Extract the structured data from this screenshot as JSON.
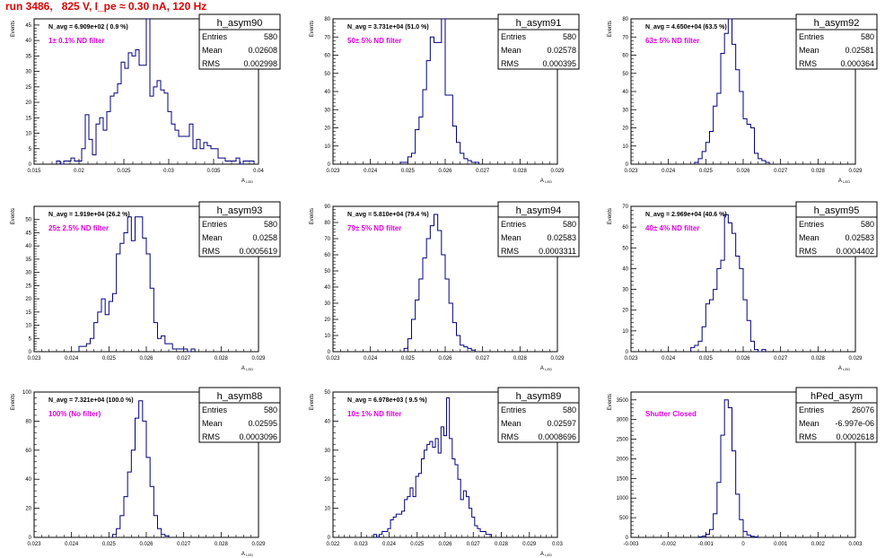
{
  "page": {
    "title": "run 3486,   825 V, I_pe ≈ 0.30 nA, 120 Hz"
  },
  "colors": {
    "title": "#e00000",
    "filter_label": "#e000e0",
    "histogram": "#000080",
    "frame": "#000000"
  },
  "stats_labels": {
    "entries": "Entries",
    "mean": "Mean",
    "rms": "RMS"
  },
  "chart_data": [
    {
      "type": "histogram",
      "name": "h_asym90",
      "navg": "N_avg = 6.909e+02 ( 0.9 %)",
      "filter": "1± 0.1% ND filter",
      "stats": {
        "entries": "580",
        "mean": "0.02608",
        "rms": "0.002998"
      },
      "ylabel": "Events",
      "xlabel": "A",
      "xlabel_sub": "LED",
      "xlim": [
        0.015,
        0.04
      ],
      "ylim": [
        0,
        47
      ],
      "xticks": [
        {
          "v": 0.015,
          "t": "0.015"
        },
        {
          "v": 0.02,
          "t": "0.02"
        },
        {
          "v": 0.025,
          "t": "0.025"
        },
        {
          "v": 0.03,
          "t": "0.03"
        },
        {
          "v": 0.035,
          "t": "0.035"
        },
        {
          "v": 0.04,
          "t": "0.04"
        }
      ],
      "yticks": [
        0,
        5,
        10,
        15,
        20,
        25,
        30,
        35,
        40,
        45
      ],
      "bin_start": 0.0175,
      "bin_width": 0.0004,
      "values": [
        1,
        0,
        1,
        1,
        2,
        1,
        1,
        5,
        16,
        8,
        3,
        13,
        15,
        11,
        17,
        22,
        23,
        26,
        33,
        31,
        36,
        35,
        37,
        32,
        32,
        47,
        22,
        25,
        27,
        24,
        23,
        17,
        13,
        11,
        9,
        9,
        9,
        13,
        5,
        8,
        5,
        7,
        6,
        5,
        5,
        2,
        2,
        1,
        1,
        1,
        2,
        0,
        1,
        1,
        1
      ]
    },
    {
      "type": "histogram",
      "name": "h_asym91",
      "navg": "N_avg = 3.731e+04 (51.0 %)",
      "filter": "50± 5% ND filter",
      "stats": {
        "entries": "580",
        "mean": "0.02578",
        "rms": "0.000395"
      },
      "ylabel": "Events",
      "xlabel": "A",
      "xlabel_sub": "LED",
      "xlim": [
        0.023,
        0.029
      ],
      "ylim": [
        0,
        80
      ],
      "xticks": [
        {
          "v": 0.023,
          "t": "0.023"
        },
        {
          "v": 0.024,
          "t": "0.024"
        },
        {
          "v": 0.025,
          "t": "0.025"
        },
        {
          "v": 0.026,
          "t": "0.026"
        },
        {
          "v": 0.027,
          "t": "0.027"
        },
        {
          "v": 0.028,
          "t": "0.028"
        },
        {
          "v": 0.029,
          "t": "0.029"
        }
      ],
      "yticks": [
        0,
        10,
        20,
        30,
        40,
        50,
        60,
        70,
        80
      ],
      "bin_start": 0.0248,
      "bin_width": 0.0001,
      "values": [
        1,
        1,
        4,
        6,
        19,
        26,
        41,
        57,
        70,
        67,
        67,
        80,
        38,
        38,
        21,
        12,
        6,
        3,
        2,
        1,
        1
      ]
    },
    {
      "type": "histogram",
      "name": "h_asym92",
      "navg": "N_avg = 4.650e+04 (63.5 %)",
      "filter": "63± 5% ND filter",
      "stats": {
        "entries": "580",
        "mean": "0.02581",
        "rms": "0.000364"
      },
      "ylabel": "Events",
      "xlabel": "A",
      "xlabel_sub": "LED",
      "xlim": [
        0.023,
        0.029
      ],
      "ylim": [
        0,
        80
      ],
      "xticks": [
        {
          "v": 0.023,
          "t": "0.023"
        },
        {
          "v": 0.024,
          "t": "0.024"
        },
        {
          "v": 0.025,
          "t": "0.025"
        },
        {
          "v": 0.026,
          "t": "0.026"
        },
        {
          "v": 0.027,
          "t": "0.027"
        },
        {
          "v": 0.028,
          "t": "0.028"
        },
        {
          "v": 0.029,
          "t": "0.029"
        }
      ],
      "yticks": [
        0,
        10,
        20,
        30,
        40,
        50,
        60,
        70,
        80
      ],
      "bin_start": 0.0247,
      "bin_width": 0.0001,
      "values": [
        1,
        3,
        7,
        12,
        18,
        32,
        39,
        61,
        72,
        82,
        66,
        52,
        40,
        25,
        22,
        20,
        6,
        3,
        2,
        1
      ]
    },
    {
      "type": "histogram",
      "name": "h_asym93",
      "navg": "N_avg = 1.919e+04 (26.2 %)",
      "filter": "25± 2.5% ND filter",
      "stats": {
        "entries": "580",
        "mean": "0.0258",
        "rms": "0.0005619"
      },
      "ylabel": "Events",
      "xlabel": "A",
      "xlabel_sub": "LED",
      "xlim": [
        0.023,
        0.029
      ],
      "ylim": [
        0,
        55
      ],
      "xticks": [
        {
          "v": 0.023,
          "t": "0.023"
        },
        {
          "v": 0.024,
          "t": "0.024"
        },
        {
          "v": 0.025,
          "t": "0.025"
        },
        {
          "v": 0.026,
          "t": "0.026"
        },
        {
          "v": 0.027,
          "t": "0.027"
        },
        {
          "v": 0.028,
          "t": "0.028"
        },
        {
          "v": 0.029,
          "t": "0.029"
        }
      ],
      "yticks": [
        0,
        5,
        10,
        15,
        20,
        25,
        30,
        35,
        40,
        45,
        50
      ],
      "bin_start": 0.0242,
      "bin_width": 0.0001,
      "values": [
        2,
        2,
        3,
        5,
        11,
        15,
        20,
        14,
        19,
        22,
        37,
        41,
        45,
        51,
        42,
        51,
        51,
        43,
        37,
        24,
        11,
        5,
        6,
        3,
        3,
        1,
        1,
        1,
        1,
        0,
        1
      ]
    },
    {
      "type": "histogram",
      "name": "h_asym94",
      "navg": "N_avg = 5.810e+04 (79.4 %)",
      "filter": "79± 5% ND filter",
      "stats": {
        "entries": "580",
        "mean": "0.02583",
        "rms": "0.0003311"
      },
      "ylabel": "Events",
      "xlabel": "A",
      "xlabel_sub": "LED",
      "xlim": [
        0.023,
        0.029
      ],
      "ylim": [
        0,
        90
      ],
      "xticks": [
        {
          "v": 0.023,
          "t": "0.023"
        },
        {
          "v": 0.024,
          "t": "0.024"
        },
        {
          "v": 0.025,
          "t": "0.025"
        },
        {
          "v": 0.026,
          "t": "0.026"
        },
        {
          "v": 0.027,
          "t": "0.027"
        },
        {
          "v": 0.028,
          "t": "0.028"
        },
        {
          "v": 0.029,
          "t": "0.029"
        }
      ],
      "yticks": [
        0,
        10,
        20,
        30,
        40,
        50,
        60,
        70,
        80,
        90
      ],
      "bin_start": 0.0249,
      "bin_width": 0.0001,
      "values": [
        2,
        8,
        20,
        32,
        45,
        58,
        70,
        78,
        85,
        75,
        60,
        45,
        30,
        18,
        10,
        4,
        3,
        2,
        1
      ]
    },
    {
      "type": "histogram",
      "name": "h_asym95",
      "navg": "N_avg = 2.969e+04 (40.6 %)",
      "filter": "40± 4% ND filter",
      "stats": {
        "entries": "580",
        "mean": "0.02583",
        "rms": "0.0004402"
      },
      "ylabel": "Events",
      "xlabel": "A",
      "xlabel_sub": "LED",
      "xlim": [
        0.023,
        0.029
      ],
      "ylim": [
        0,
        70
      ],
      "xticks": [
        {
          "v": 0.023,
          "t": "0.023"
        },
        {
          "v": 0.024,
          "t": "0.024"
        },
        {
          "v": 0.025,
          "t": "0.025"
        },
        {
          "v": 0.026,
          "t": "0.026"
        },
        {
          "v": 0.027,
          "t": "0.027"
        },
        {
          "v": 0.028,
          "t": "0.028"
        },
        {
          "v": 0.029,
          "t": "0.029"
        }
      ],
      "yticks": [
        0,
        10,
        20,
        30,
        40,
        50,
        60,
        70
      ],
      "bin_start": 0.0246,
      "bin_width": 0.0001,
      "values": [
        2,
        3,
        5,
        12,
        23,
        25,
        30,
        40,
        44,
        66,
        62,
        57,
        46,
        40,
        25,
        15,
        5,
        1,
        0,
        1
      ]
    },
    {
      "type": "histogram",
      "name": "h_asym88",
      "navg": "N_avg = 7.321e+04 (100.0 %)",
      "filter": "100% (No filter)",
      "stats": {
        "entries": "580",
        "mean": "0.02595",
        "rms": "0.0003096"
      },
      "ylabel": "Events",
      "xlabel": "A",
      "xlabel_sub": "LED",
      "xlim": [
        0.023,
        0.029
      ],
      "ylim": [
        0,
        100
      ],
      "xticks": [
        {
          "v": 0.023,
          "t": "0.023"
        },
        {
          "v": 0.024,
          "t": "0.024"
        },
        {
          "v": 0.025,
          "t": "0.025"
        },
        {
          "v": 0.026,
          "t": "0.026"
        },
        {
          "v": 0.027,
          "t": "0.027"
        },
        {
          "v": 0.028,
          "t": "0.028"
        },
        {
          "v": 0.029,
          "t": "0.029"
        }
      ],
      "yticks": [
        0,
        20,
        40,
        60,
        80,
        100
      ],
      "bin_start": 0.0251,
      "bin_width": 0.0001,
      "values": [
        2,
        6,
        15,
        28,
        45,
        60,
        82,
        94,
        80,
        55,
        35,
        15,
        6,
        2,
        1
      ]
    },
    {
      "type": "histogram",
      "name": "h_asym89",
      "navg": "N_avg = 6.978e+03 ( 9.5 %)",
      "filter": "10± 1% ND filter",
      "stats": {
        "entries": "580",
        "mean": "0.02597",
        "rms": "0.0008696"
      },
      "ylabel": "Events",
      "xlabel": "A",
      "xlabel_sub": "LED",
      "xlim": [
        0.022,
        0.03
      ],
      "ylim": [
        0,
        50
      ],
      "xticks": [
        {
          "v": 0.022,
          "t": "0.022"
        },
        {
          "v": 0.023,
          "t": "0.023"
        },
        {
          "v": 0.024,
          "t": "0.024"
        },
        {
          "v": 0.025,
          "t": "0.025"
        },
        {
          "v": 0.026,
          "t": "0.026"
        },
        {
          "v": 0.027,
          "t": "0.027"
        },
        {
          "v": 0.028,
          "t": "0.028"
        },
        {
          "v": 0.029,
          "t": "0.029"
        },
        {
          "v": 0.03,
          "t": "0.03"
        }
      ],
      "yticks": [
        0,
        10,
        20,
        30,
        40,
        50
      ],
      "bin_start": 0.02345,
      "bin_width": 0.0001,
      "values": [
        1,
        0,
        1,
        2,
        2,
        3,
        6,
        7,
        8,
        8,
        9,
        13,
        14,
        17,
        14,
        21,
        22,
        27,
        30,
        32,
        33,
        31,
        34,
        29,
        38,
        35,
        48,
        34,
        27,
        25,
        20,
        13,
        16,
        14,
        10,
        7,
        4,
        3,
        2,
        2,
        1,
        1
      ]
    },
    {
      "type": "histogram",
      "name": "hPed_asym",
      "navg": "",
      "filter": "Shutter Closed",
      "stats": {
        "entries": "26076",
        "mean": "-6.997e-06",
        "rms": "0.0002618"
      },
      "ylabel": "Events",
      "xlabel": "",
      "xlabel_sub": "",
      "xlim": [
        -0.003,
        0.003
      ],
      "ylim": [
        0,
        3700
      ],
      "xticks": [
        {
          "v": -0.003,
          "t": "-0.003"
        },
        {
          "v": -0.002,
          "t": "-0.002"
        },
        {
          "v": -0.001,
          "t": "-0.001"
        },
        {
          "v": 0,
          "t": "0"
        },
        {
          "v": 0.001,
          "t": "0.001"
        },
        {
          "v": 0.002,
          "t": "0.002"
        },
        {
          "v": 0.003,
          "t": "0.003"
        }
      ],
      "yticks": [
        0,
        500,
        1000,
        1500,
        2000,
        2500,
        3000,
        3500
      ],
      "bin_start": -0.0012,
      "bin_width": 0.0001,
      "values": [
        10,
        30,
        80,
        200,
        600,
        1400,
        2600,
        3500,
        3300,
        2200,
        1100,
        450,
        150,
        60,
        25,
        10
      ]
    }
  ]
}
